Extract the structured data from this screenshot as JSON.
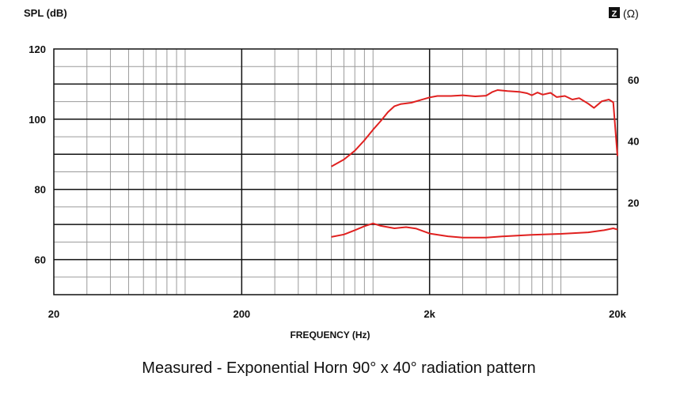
{
  "chart_data": {
    "type": "line",
    "caption": "Measured - Exponential Horn 90° x 40° radiation pattern",
    "xlabel": "FREQUENCY (Hz)",
    "ylabel_left": "SPL (dB)",
    "ylabel_right_badge": "Z",
    "ylabel_right_unit": "(Ω)",
    "x_scale": "log",
    "xlim": [
      20,
      20000
    ],
    "x_ticks": [
      {
        "value": 20,
        "label": "20"
      },
      {
        "value": 200,
        "label": "200"
      },
      {
        "value": 2000,
        "label": "2k"
      },
      {
        "value": 20000,
        "label": "20k"
      }
    ],
    "ylim_left": [
      50,
      120
    ],
    "y_ticks_left": [
      {
        "value": 60,
        "label": "60"
      },
      {
        "value": 80,
        "label": "80"
      },
      {
        "value": 100,
        "label": "100"
      },
      {
        "value": 120,
        "label": "120"
      }
    ],
    "ylim_right": [
      -10,
      70
    ],
    "y_ticks_right": [
      {
        "value": 20,
        "label": "20"
      },
      {
        "value": 40,
        "label": "40"
      },
      {
        "value": 60,
        "label": "60"
      }
    ],
    "grid": true,
    "line_color": "#e0201f",
    "series": [
      {
        "axis": "left",
        "points": [
          [
            600,
            86.5
          ],
          [
            700,
            88.5
          ],
          [
            800,
            91
          ],
          [
            900,
            94
          ],
          [
            1000,
            97
          ],
          [
            1100,
            99.5
          ],
          [
            1200,
            102
          ],
          [
            1300,
            103.7
          ],
          [
            1400,
            104.3
          ],
          [
            1600,
            104.7
          ],
          [
            1800,
            105.5
          ],
          [
            2000,
            106.2
          ],
          [
            2200,
            106.6
          ],
          [
            2600,
            106.6
          ],
          [
            3000,
            106.8
          ],
          [
            3500,
            106.5
          ],
          [
            4000,
            106.7
          ],
          [
            4300,
            107.7
          ],
          [
            4600,
            108.3
          ],
          [
            5200,
            108.0
          ],
          [
            6000,
            107.8
          ],
          [
            6600,
            107.4
          ],
          [
            7000,
            106.8
          ],
          [
            7500,
            107.6
          ],
          [
            8000,
            107.0
          ],
          [
            8800,
            107.5
          ],
          [
            9500,
            106.3
          ],
          [
            10500,
            106.6
          ],
          [
            11500,
            105.6
          ],
          [
            12500,
            106.0
          ],
          [
            14000,
            104.4
          ],
          [
            15000,
            103.2
          ],
          [
            16500,
            105.1
          ],
          [
            18000,
            105.6
          ],
          [
            19000,
            104.8
          ],
          [
            20000,
            89.5
          ]
        ]
      },
      {
        "axis": "right",
        "points": [
          [
            600,
            8.8
          ],
          [
            700,
            9.6
          ],
          [
            800,
            11
          ],
          [
            900,
            12.3
          ],
          [
            1000,
            13.2
          ],
          [
            1100,
            12.4
          ],
          [
            1300,
            11.6
          ],
          [
            1500,
            12.0
          ],
          [
            1700,
            11.5
          ],
          [
            2000,
            9.9
          ],
          [
            2500,
            9.0
          ],
          [
            3000,
            8.6
          ],
          [
            4000,
            8.6
          ],
          [
            5000,
            9.0
          ],
          [
            7000,
            9.5
          ],
          [
            10000,
            9.8
          ],
          [
            14000,
            10.3
          ],
          [
            17000,
            11.0
          ],
          [
            19000,
            11.6
          ],
          [
            20000,
            11.2
          ]
        ]
      }
    ]
  }
}
